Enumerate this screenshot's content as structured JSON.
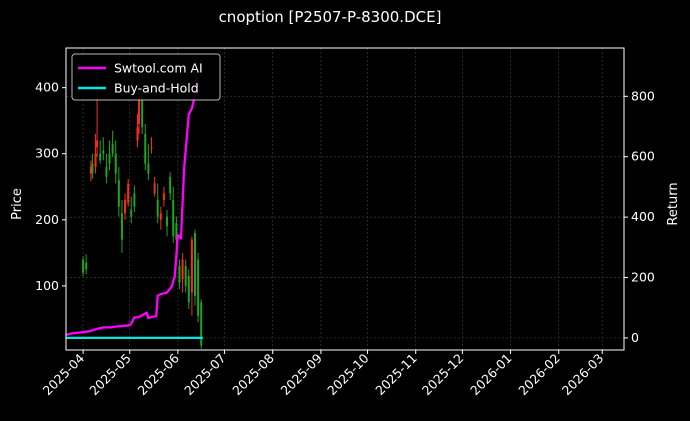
{
  "chart_data": {
    "type": "line",
    "title": "cnoption [P2507-P-8300.DCE]",
    "ylabel_left": "Price",
    "ylabel_right": "Return",
    "x_range": [
      "2025-03-21",
      "2026-03-15"
    ],
    "y_left_range": [
      3,
      460
    ],
    "y_right_range": [
      -40,
      960
    ],
    "y_left_ticks": [
      100,
      200,
      300,
      400
    ],
    "y_right_ticks": [
      0,
      200,
      400,
      600,
      800
    ],
    "x_ticks": [
      "2025-04",
      "2025-05",
      "2025-06",
      "2025-07",
      "2025-08",
      "2025-09",
      "2025-10",
      "2025-11",
      "2025-12",
      "2026-01",
      "2026-02",
      "2026-03"
    ],
    "grid": true,
    "legend_position": "top-left",
    "colors": {
      "background": "#000000",
      "up": "#ff2a1a",
      "down": "#1ea51e",
      "grid": "#3a3a3a",
      "axis": "#ffffff"
    },
    "series": [
      {
        "name": "Swtool.com AI",
        "axis": "right",
        "color": "#ff00ff",
        "points": [
          [
            "2025-03-21",
            10
          ],
          [
            "2025-03-25",
            15
          ],
          [
            "2025-03-30",
            18
          ],
          [
            "2025-04-05",
            22
          ],
          [
            "2025-04-10",
            30
          ],
          [
            "2025-04-14",
            35
          ],
          [
            "2025-04-19",
            35
          ],
          [
            "2025-04-23",
            38
          ],
          [
            "2025-04-28",
            40
          ],
          [
            "2025-05-01",
            42
          ],
          [
            "2025-05-02",
            48
          ],
          [
            "2025-05-04",
            68
          ],
          [
            "2025-05-06",
            68
          ],
          [
            "2025-05-08",
            72
          ],
          [
            "2025-05-10",
            78
          ],
          [
            "2025-05-12",
            84
          ],
          [
            "2025-05-13",
            66
          ],
          [
            "2025-05-16",
            70
          ],
          [
            "2025-05-18",
            72
          ],
          [
            "2025-05-19",
            140
          ],
          [
            "2025-05-21",
            145
          ],
          [
            "2025-05-25",
            150
          ],
          [
            "2025-05-28",
            170
          ],
          [
            "2025-05-30",
            205
          ],
          [
            "2025-06-01",
            340
          ],
          [
            "2025-06-03",
            330
          ],
          [
            "2025-06-05",
            560
          ],
          [
            "2025-06-08",
            740
          ],
          [
            "2025-06-10",
            760
          ],
          [
            "2025-06-12",
            805
          ],
          [
            "2025-06-13",
            880
          ]
        ]
      },
      {
        "name": "Buy-and-Hold",
        "axis": "right",
        "color": "#00e5e5",
        "points": [
          [
            "2025-03-21",
            0
          ],
          [
            "2025-06-17",
            0
          ]
        ]
      }
    ],
    "candles": [
      {
        "date": "2025-04-01",
        "open": 140,
        "high": 145,
        "low": 115,
        "close": 120
      },
      {
        "date": "2025-04-03",
        "open": 135,
        "high": 148,
        "low": 118,
        "close": 125
      },
      {
        "date": "2025-04-06",
        "open": 270,
        "high": 290,
        "low": 258,
        "close": 280
      },
      {
        "date": "2025-04-07",
        "open": 285,
        "high": 300,
        "low": 262,
        "close": 270
      },
      {
        "date": "2025-04-09",
        "open": 280,
        "high": 330,
        "low": 270,
        "close": 300
      },
      {
        "date": "2025-04-10",
        "open": 310,
        "high": 420,
        "low": 295,
        "close": 320
      },
      {
        "date": "2025-04-12",
        "open": 300,
        "high": 320,
        "low": 285,
        "close": 290
      },
      {
        "date": "2025-04-14",
        "open": 305,
        "high": 325,
        "low": 290,
        "close": 300
      },
      {
        "date": "2025-04-16",
        "open": 280,
        "high": 300,
        "low": 255,
        "close": 265
      },
      {
        "date": "2025-04-18",
        "open": 300,
        "high": 320,
        "low": 275,
        "close": 285
      },
      {
        "date": "2025-04-20",
        "open": 315,
        "high": 335,
        "low": 295,
        "close": 300
      },
      {
        "date": "2025-04-22",
        "open": 300,
        "high": 320,
        "low": 255,
        "close": 270
      },
      {
        "date": "2025-04-24",
        "open": 260,
        "high": 280,
        "low": 205,
        "close": 220
      },
      {
        "date": "2025-04-26",
        "open": 210,
        "high": 230,
        "low": 150,
        "close": 170
      },
      {
        "date": "2025-04-28",
        "open": 210,
        "high": 240,
        "low": 200,
        "close": 230
      },
      {
        "date": "2025-04-30",
        "open": 225,
        "high": 262,
        "low": 220,
        "close": 255
      },
      {
        "date": "2025-05-02",
        "open": 215,
        "high": 235,
        "low": 195,
        "close": 205
      },
      {
        "date": "2025-05-04",
        "open": 240,
        "high": 252,
        "low": 212,
        "close": 220
      },
      {
        "date": "2025-05-06",
        "open": 320,
        "high": 360,
        "low": 310,
        "close": 340
      },
      {
        "date": "2025-05-07",
        "open": 345,
        "high": 430,
        "low": 330,
        "close": 400
      },
      {
        "date": "2025-05-09",
        "open": 390,
        "high": 425,
        "low": 330,
        "close": 340
      },
      {
        "date": "2025-05-11",
        "open": 330,
        "high": 345,
        "low": 275,
        "close": 285
      },
      {
        "date": "2025-05-13",
        "open": 285,
        "high": 315,
        "low": 260,
        "close": 270
      },
      {
        "date": "2025-05-15",
        "open": 310,
        "high": 325,
        "low": 300,
        "close": 310
      },
      {
        "date": "2025-05-17",
        "open": 240,
        "high": 265,
        "low": 235,
        "close": 255
      },
      {
        "date": "2025-05-19",
        "open": 230,
        "high": 255,
        "low": 195,
        "close": 205
      },
      {
        "date": "2025-05-21",
        "open": 200,
        "high": 220,
        "low": 185,
        "close": 210
      },
      {
        "date": "2025-05-23",
        "open": 230,
        "high": 250,
        "low": 220,
        "close": 240
      },
      {
        "date": "2025-05-25",
        "open": 205,
        "high": 215,
        "low": 175,
        "close": 190
      },
      {
        "date": "2025-05-27",
        "open": 265,
        "high": 272,
        "low": 230,
        "close": 240
      },
      {
        "date": "2025-05-29",
        "open": 230,
        "high": 250,
        "low": 165,
        "close": 175
      },
      {
        "date": "2025-05-31",
        "open": 195,
        "high": 205,
        "low": 160,
        "close": 170
      },
      {
        "date": "2025-06-02",
        "open": 130,
        "high": 140,
        "low": 95,
        "close": 105
      },
      {
        "date": "2025-06-04",
        "open": 110,
        "high": 150,
        "low": 90,
        "close": 140
      },
      {
        "date": "2025-06-06",
        "open": 130,
        "high": 140,
        "low": 90,
        "close": 100
      },
      {
        "date": "2025-06-08",
        "open": 115,
        "high": 125,
        "low": 65,
        "close": 75
      },
      {
        "date": "2025-06-10",
        "open": 90,
        "high": 175,
        "low": 55,
        "close": 170
      },
      {
        "date": "2025-06-12",
        "open": 180,
        "high": 185,
        "low": 70,
        "close": 85
      },
      {
        "date": "2025-06-14",
        "open": 140,
        "high": 150,
        "low": 45,
        "close": 55
      },
      {
        "date": "2025-06-16",
        "open": 75,
        "high": 80,
        "low": 5,
        "close": 10
      }
    ]
  }
}
